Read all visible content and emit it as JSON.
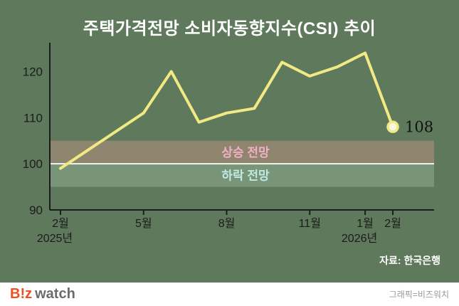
{
  "title": "주택가격전망 소비자동향지수(CSI) 추이",
  "source": "자료: 한국은행",
  "footer": {
    "logo_biz": "B!z",
    "logo_watch": "watch",
    "credit": "그래픽=비즈워치"
  },
  "chart_data": {
    "type": "line",
    "title": "주택가격전망 소비자동향지수(CSI) 추이",
    "x": [
      "2025-02",
      "2025-03",
      "2025-04",
      "2025-05",
      "2025-06",
      "2025-07",
      "2025-08",
      "2025-09",
      "2025-10",
      "2025-11",
      "2025-12",
      "2026-01",
      "2026-02"
    ],
    "values": [
      99,
      103,
      107,
      111,
      120,
      109,
      111,
      112,
      122,
      119,
      121,
      124,
      108
    ],
    "ylim": [
      90,
      125
    ],
    "yticks": [
      90,
      100,
      110,
      120
    ],
    "xticks": [
      {
        "index": 0,
        "label": "2월",
        "year": "2025년"
      },
      {
        "index": 3,
        "label": "5월"
      },
      {
        "index": 6,
        "label": "8월"
      },
      {
        "index": 9,
        "label": "11월"
      },
      {
        "index": 11,
        "label": "1월",
        "year": "2026년"
      },
      {
        "index": 12,
        "label": "2월"
      }
    ],
    "grid": false,
    "legend": null,
    "last_point_label": "108",
    "bands": {
      "upper_label": "상승 전망",
      "lower_label": "하락 전망",
      "from": 95,
      "midline": 100,
      "to": 105
    }
  },
  "colors": {
    "background": "#5e795b",
    "line": "#f1e983",
    "marker_fill": "#f9f7e4",
    "axis": "#1c1c1c",
    "tick_label": "#1c1c1c",
    "title": "#ffffff",
    "rise_text": "#f5aec5",
    "fall_text": "#bfe9e2",
    "band_upper": "rgba(205,150,135,0.45)",
    "band_lower": "rgba(200,230,208,0.26)",
    "midline": "#f6f3ea",
    "point_label": "#111111",
    "source": "#ffffff",
    "logo_accent": "#f04e23",
    "logo_text": "#6b6b6b",
    "credit": "#9a9a9a",
    "footer_bg": "#ffffff"
  }
}
